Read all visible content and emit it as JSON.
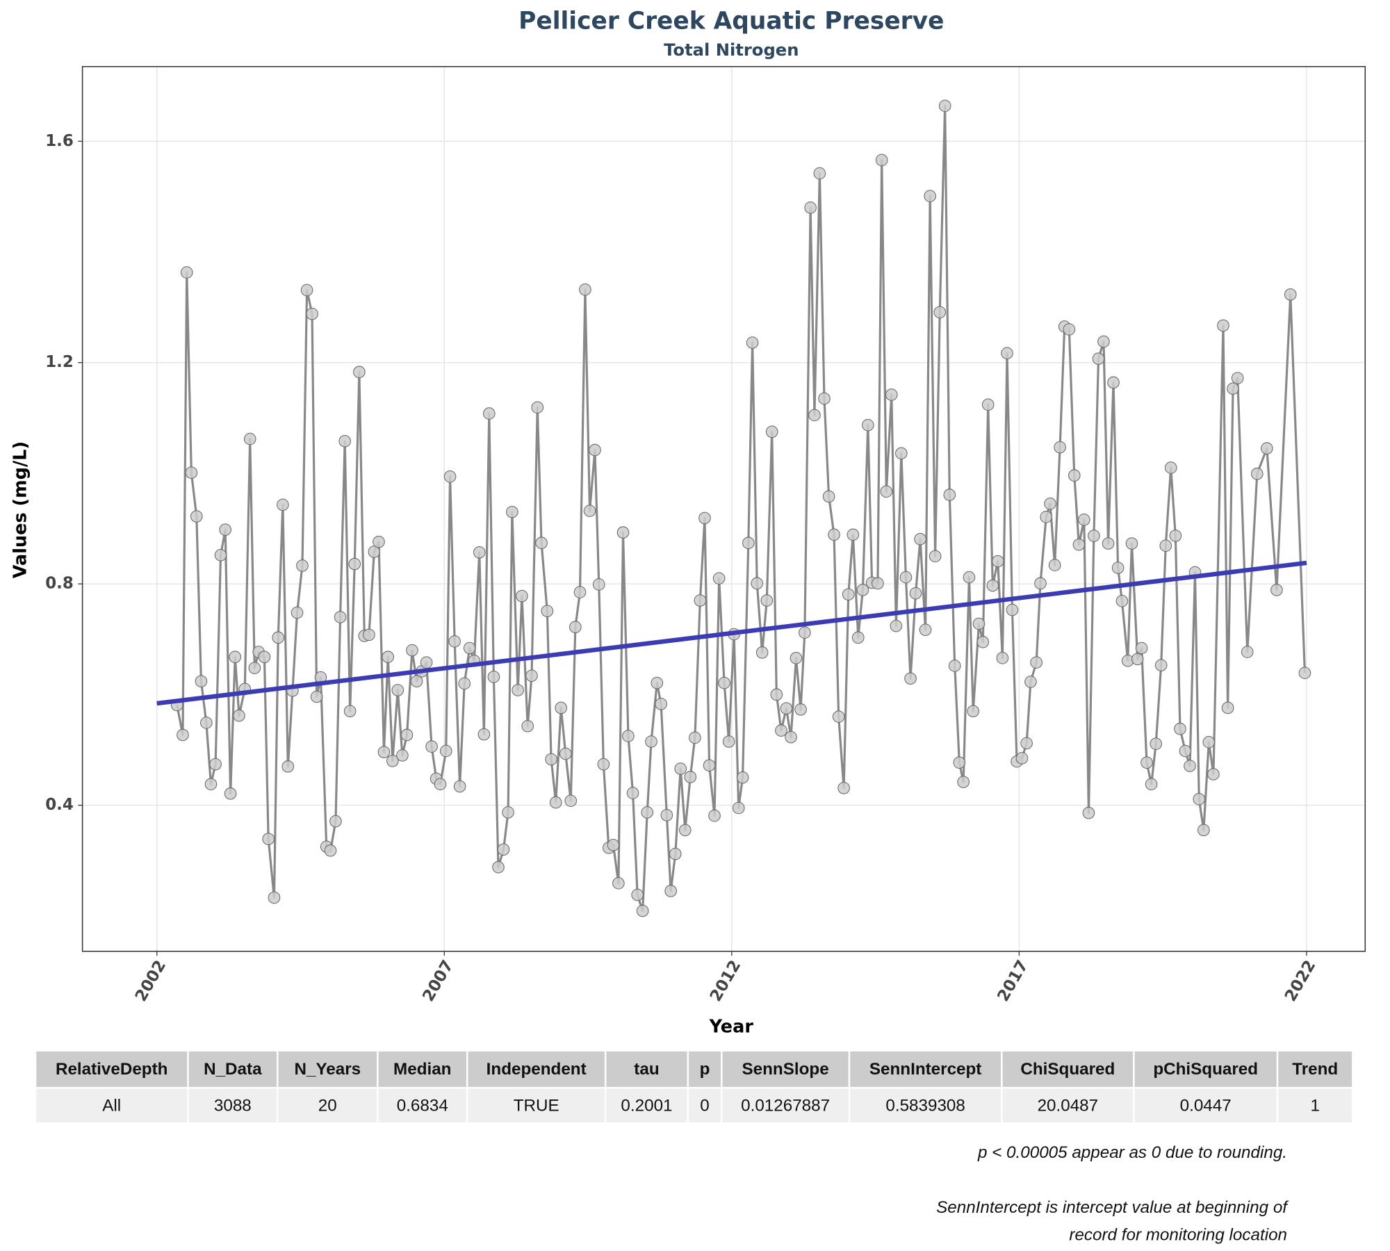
{
  "chart_data": {
    "type": "line",
    "title": "Pellicer Creek Aquatic Preserve",
    "subtitle": "Total Nitrogen",
    "x_label": "Year",
    "y_label": "Values (mg/L)",
    "xlim": [
      2000.705,
      2023.02
    ],
    "ylim": [
      0.136,
      1.735
    ],
    "xticks": [
      2002,
      2007,
      2012,
      2017,
      2022
    ],
    "yticks": [
      0.4,
      0.8,
      1.2,
      1.6
    ],
    "grid": true,
    "series": [
      {
        "color": "#888888",
        "marker_color": "#cccccc",
        "x": [
          2002.35,
          2002.45,
          2002.52,
          2002.6,
          2002.69,
          2002.77,
          2002.86,
          2002.94,
          2003.02,
          2003.11,
          2003.19,
          2003.28,
          2003.36,
          2003.43,
          2003.53,
          2003.62,
          2003.7,
          2003.77,
          2003.87,
          2003.94,
          2004.04,
          2004.11,
          2004.19,
          2004.28,
          2004.36,
          2004.44,
          2004.53,
          2004.61,
          2004.7,
          2004.78,
          2004.85,
          2004.95,
          2005.02,
          2005.11,
          2005.19,
          2005.27,
          2005.36,
          2005.44,
          2005.52,
          2005.61,
          2005.69,
          2005.78,
          2005.86,
          2005.95,
          2006.02,
          2006.1,
          2006.19,
          2006.27,
          2006.35,
          2006.44,
          2006.52,
          2006.61,
          2006.69,
          2006.78,
          2006.86,
          2006.93,
          2007.03,
          2007.1,
          2007.18,
          2007.27,
          2007.35,
          2007.44,
          2007.52,
          2007.61,
          2007.69,
          2007.78,
          2007.86,
          2007.94,
          2008.03,
          2008.11,
          2008.18,
          2008.28,
          2008.35,
          2008.45,
          2008.52,
          2008.62,
          2008.69,
          2008.79,
          2008.86,
          2008.94,
          2009.03,
          2009.11,
          2009.2,
          2009.28,
          2009.36,
          2009.45,
          2009.53,
          2009.62,
          2009.69,
          2009.77,
          2009.86,
          2009.94,
          2010.03,
          2010.11,
          2010.2,
          2010.28,
          2010.36,
          2010.45,
          2010.53,
          2010.6,
          2010.7,
          2010.77,
          2010.87,
          2010.94,
          2011.02,
          2011.11,
          2011.19,
          2011.28,
          2011.36,
          2011.45,
          2011.53,
          2011.61,
          2011.7,
          2011.78,
          2011.87,
          2011.95,
          2012.04,
          2012.12,
          2012.19,
          2012.29,
          2012.36,
          2012.44,
          2012.53,
          2012.61,
          2012.7,
          2012.78,
          2012.86,
          2012.95,
          2013.03,
          2013.12,
          2013.2,
          2013.27,
          2013.37,
          2013.44,
          2013.53,
          2013.61,
          2013.69,
          2013.78,
          2013.86,
          2013.95,
          2014.03,
          2014.11,
          2014.2,
          2014.28,
          2014.37,
          2014.44,
          2014.54,
          2014.61,
          2014.69,
          2014.78,
          2014.86,
          2014.95,
          2015.03,
          2015.11,
          2015.2,
          2015.28,
          2015.37,
          2015.45,
          2015.54,
          2015.62,
          2015.71,
          2015.79,
          2015.88,
          2015.96,
          2016.03,
          2016.13,
          2016.2,
          2016.3,
          2016.37,
          2016.46,
          2016.54,
          2016.63,
          2016.71,
          2016.79,
          2016.88,
          2016.96,
          2017.05,
          2017.13,
          2017.2,
          2017.3,
          2017.37,
          2017.47,
          2017.54,
          2017.62,
          2017.71,
          2017.79,
          2017.87,
          2017.96,
          2018.04,
          2018.13,
          2018.21,
          2018.3,
          2018.38,
          2018.47,
          2018.55,
          2018.64,
          2018.72,
          2018.79,
          2018.89,
          2018.96,
          2019.06,
          2019.13,
          2019.22,
          2019.3,
          2019.38,
          2019.47,
          2019.55,
          2019.64,
          2019.72,
          2019.8,
          2019.89,
          2019.97,
          2020.06,
          2020.13,
          2020.21,
          2020.3,
          2020.38,
          2020.55,
          2020.63,
          2020.72,
          2020.8,
          2020.97,
          2021.14,
          2021.31,
          2021.48,
          2021.72,
          2021.97
        ],
        "values": [
          0.581,
          0.527,
          1.363,
          1.001,
          0.922,
          0.624,
          0.549,
          0.438,
          0.474,
          0.852,
          0.898,
          0.421,
          0.668,
          0.562,
          0.61,
          1.062,
          0.648,
          0.677,
          0.668,
          0.339,
          0.233,
          0.703,
          0.943,
          0.47,
          0.607,
          0.748,
          0.833,
          1.331,
          1.288,
          0.596,
          0.631,
          0.325,
          0.318,
          0.371,
          0.74,
          1.058,
          0.57,
          0.836,
          1.183,
          0.706,
          0.708,
          0.858,
          0.876,
          0.496,
          0.668,
          0.48,
          0.608,
          0.49,
          0.527,
          0.68,
          0.624,
          0.642,
          0.658,
          0.506,
          0.448,
          0.438,
          0.498,
          0.994,
          0.696,
          0.434,
          0.62,
          0.684,
          0.661,
          0.857,
          0.528,
          1.108,
          0.632,
          0.288,
          0.32,
          0.387,
          0.93,
          0.608,
          0.778,
          0.543,
          0.634,
          1.119,
          0.874,
          0.751,
          0.483,
          0.405,
          0.576,
          0.493,
          0.408,
          0.722,
          0.785,
          1.332,
          0.932,
          1.042,
          0.799,
          0.474,
          0.323,
          0.328,
          0.259,
          0.893,
          0.525,
          0.422,
          0.238,
          0.209,
          0.387,
          0.515,
          0.621,
          0.583,
          0.382,
          0.245,
          0.312,
          0.466,
          0.355,
          0.451,
          0.522,
          0.77,
          0.919,
          0.472,
          0.381,
          0.81,
          0.621,
          0.515,
          0.709,
          0.395,
          0.45,
          0.874,
          1.236,
          0.801,
          0.676,
          0.77,
          1.075,
          0.6,
          0.535,
          0.575,
          0.523,
          0.666,
          0.573,
          0.712,
          1.48,
          1.105,
          1.542,
          1.135,
          0.958,
          0.889,
          0.56,
          0.431,
          0.781,
          0.889,
          0.703,
          0.789,
          1.087,
          0.802,
          0.801,
          1.566,
          0.967,
          1.142,
          0.724,
          1.036,
          0.812,
          0.629,
          0.783,
          0.881,
          0.717,
          1.501,
          0.85,
          1.291,
          1.664,
          0.961,
          0.652,
          0.477,
          0.442,
          0.812,
          0.57,
          0.728,
          0.695,
          1.124,
          0.797,
          0.841,
          0.666,
          1.217,
          0.753,
          0.479,
          0.485,
          0.512,
          0.623,
          0.658,
          0.801,
          0.921,
          0.945,
          0.834,
          1.047,
          1.265,
          1.26,
          0.996,
          0.871,
          0.916,
          0.386,
          0.887,
          1.207,
          1.238,
          0.873,
          1.164,
          0.829,
          0.769,
          0.661,
          0.873,
          0.664,
          0.684,
          0.477,
          0.438,
          0.511,
          0.653,
          0.869,
          1.01,
          0.887,
          0.538,
          0.498,
          0.471,
          0.821,
          0.411,
          0.355,
          0.514,
          0.456,
          1.267,
          0.576,
          1.153,
          1.172,
          0.677,
          0.999,
          1.045,
          0.789,
          1.323,
          0.639
        ]
      }
    ],
    "trend": {
      "color": "#3b3bb3",
      "x": [
        2002,
        2022
      ],
      "values": [
        0.584,
        0.838
      ]
    }
  },
  "table": {
    "header": [
      "RelativeDepth",
      "N_Data",
      "N_Years",
      "Median",
      "Independent",
      "tau",
      "p",
      "SennSlope",
      "SennIntercept",
      "ChiSquared",
      "pChiSquared",
      "Trend"
    ],
    "rows": [
      [
        "All",
        3088,
        20,
        0.6834,
        "TRUE",
        0.2001,
        0,
        0.01267887,
        0.5839308,
        20.0487,
        0.0447,
        1
      ]
    ]
  },
  "notes": [
    [
      "p < 0.00005 appear as 0 due to rounding."
    ],
    [
      "SennIntercept is intercept value at beginning of",
      "record for monitoring location"
    ]
  ]
}
